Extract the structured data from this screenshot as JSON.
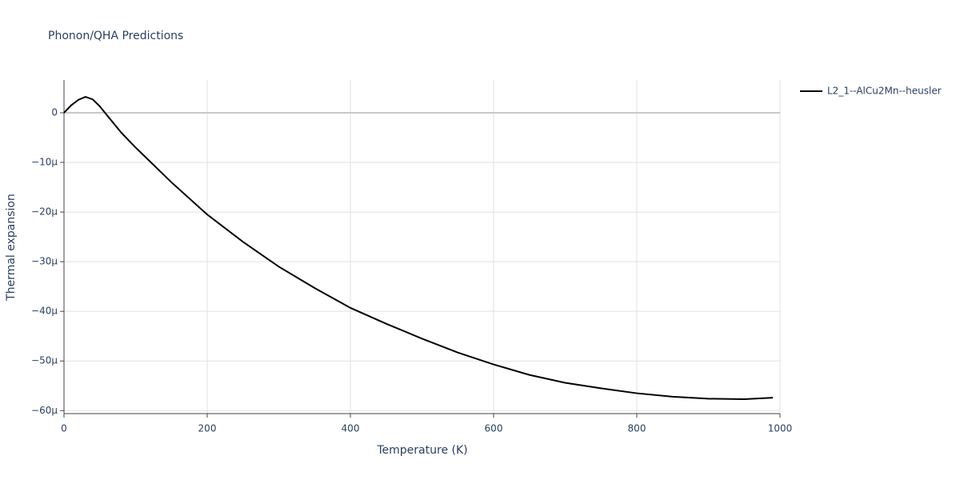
{
  "chart_data": {
    "type": "line",
    "title": "Phonon/QHA Predictions",
    "x_label": "Temperature (K)",
    "y_label": "Thermal expansion",
    "x": [
      0,
      10,
      20,
      30,
      40,
      50,
      60,
      80,
      100,
      150,
      200,
      250,
      300,
      350,
      400,
      450,
      500,
      550,
      600,
      650,
      700,
      750,
      800,
      850,
      900,
      950,
      990
    ],
    "series": [
      {
        "name": "L2_1--AlCu2Mn--heusler",
        "color": "#000000",
        "values": [
          0,
          1.5e-06,
          2.6e-06,
          3.2e-06,
          2.7e-06,
          1.3e-06,
          -5e-07,
          -4e-06,
          -7e-06,
          -1.4e-05,
          -2.05e-05,
          -2.6e-05,
          -3.1e-05,
          -3.53e-05,
          -3.93e-05,
          -4.25e-05,
          -4.55e-05,
          -4.83e-05,
          -5.07e-05,
          -5.28e-05,
          -5.44e-05,
          -5.55e-05,
          -5.65e-05,
          -5.72e-05,
          -5.76e-05,
          -5.77e-05,
          -5.74e-05
        ]
      }
    ],
    "xlim": [
      0,
      1000
    ],
    "xticks": [
      0,
      200,
      400,
      600,
      800,
      1000
    ],
    "ylim": [
      -6.06e-05,
      6.6e-06
    ],
    "yticks": [
      0,
      {
        "value": -1e-05,
        "label": "−10μ"
      },
      {
        "value": -2e-05,
        "label": "−20μ"
      },
      {
        "value": -3e-05,
        "label": "−30μ"
      },
      {
        "value": -4e-05,
        "label": "−40μ"
      },
      {
        "value": -5e-05,
        "label": "−50μ"
      },
      {
        "value": -6e-05,
        "label": "−60μ"
      }
    ],
    "grid": true,
    "legend": "top-right"
  }
}
